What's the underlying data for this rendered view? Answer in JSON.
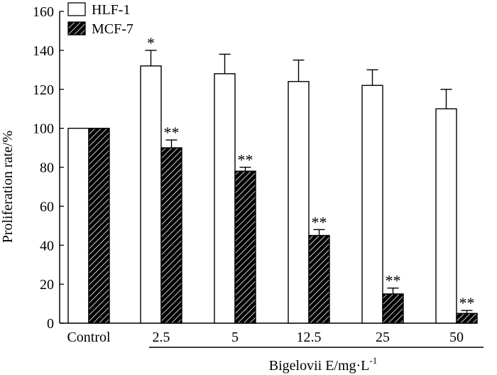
{
  "chart_data": {
    "type": "bar",
    "title": "",
    "ylabel": "Proliferation rate/%",
    "xlabel": "Bigelovii E/mg·L",
    "xlabel_superscript": "-1",
    "ylim": [
      0,
      160
    ],
    "yticks": [
      0,
      20,
      40,
      60,
      80,
      100,
      120,
      140,
      160
    ],
    "categories": [
      "Control",
      "2.5",
      "5",
      "12.5",
      "25",
      "50"
    ],
    "legend_position": "top-left",
    "series": [
      {
        "name": "HLF-1",
        "fill": "open",
        "values": [
          100,
          132,
          128,
          124,
          122,
          110
        ],
        "errors": [
          0,
          8,
          10,
          11,
          8,
          10
        ],
        "annotations": [
          "",
          "*",
          "",
          "",
          "",
          ""
        ]
      },
      {
        "name": "MCF-7",
        "fill": "hatched",
        "values": [
          100,
          90,
          78,
          45,
          15,
          5
        ],
        "errors": [
          0,
          4,
          2,
          3,
          3,
          1.5
        ],
        "annotations": [
          "",
          "**",
          "**",
          "**",
          "**",
          "**"
        ]
      }
    ]
  }
}
